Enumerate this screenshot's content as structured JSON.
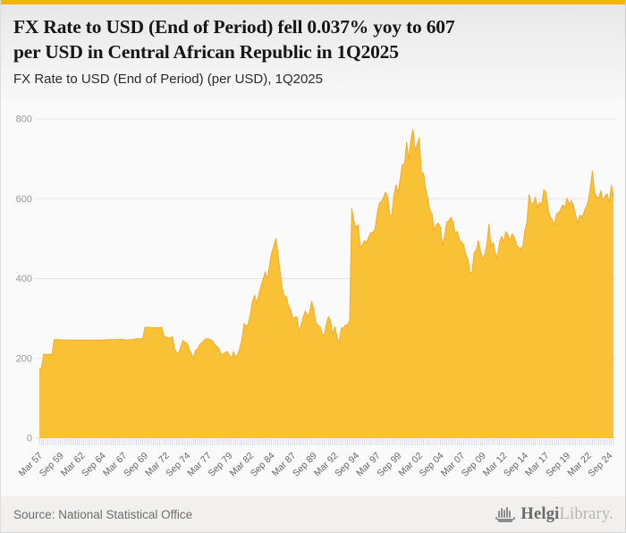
{
  "header": {
    "title": "FX Rate to USD (End of Period) fell 0.037% yoy to 607 per USD in Central African Republic in 1Q2025",
    "title_lines": [
      "FX Rate to USD (End of Period) fell 0.037% yoy to 607",
      "per USD in Central African Republic in 1Q2025"
    ],
    "subtitle": "FX Rate to USD (End of Period) (per USD), 1Q2025",
    "accent_color": "#F2B600"
  },
  "footer": {
    "source": "Source: National Statistical Office",
    "logo_primary": "Helgi",
    "logo_secondary": "Library."
  },
  "chart_data": {
    "type": "area",
    "title": "FX Rate to USD (End of Period) fell 0.037% yoy to 607 per USD in Central African Republic in 1Q2025",
    "subtitle": "FX Rate to USD (End of Period) (per USD), 1Q2025",
    "series_name": "FX Rate to USD (End of Period), per USD",
    "country": "Central African Republic",
    "frequency": "quarterly",
    "x_start": "Mar 1957",
    "x_end": "Mar 2025",
    "last_value": 607,
    "yoy_change_pct": -0.037,
    "ylim": [
      0,
      800
    ],
    "yticks": [
      0,
      200,
      400,
      600,
      800
    ],
    "grid": true,
    "legend": false,
    "x_tick_every": 10,
    "x_tick_labels": [
      "Mar 57",
      "Sep 59",
      "Mar 62",
      "Sep 64",
      "Mar 67",
      "Sep 69",
      "Mar 72",
      "Sep 74",
      "Mar 77",
      "Sep 79",
      "Mar 82",
      "Sep 84",
      "Mar 87",
      "Sep 89",
      "Mar 92",
      "Sep 94",
      "Mar 97",
      "Sep 99",
      "Mar 02",
      "Sep 04",
      "Mar 07",
      "Sep 09",
      "Mar 12",
      "Sep 14",
      "Mar 17",
      "Sep 19",
      "Mar 22",
      "Sep 24"
    ],
    "values": [
      175,
      175,
      210,
      210,
      210,
      210,
      210,
      247,
      247,
      247,
      247,
      246,
      246,
      246,
      246,
      246,
      246,
      246,
      246,
      246,
      246,
      246,
      246,
      246,
      246,
      246,
      246,
      246,
      246,
      246,
      246,
      246,
      247,
      247,
      247,
      247,
      247,
      247,
      248,
      248,
      247,
      246,
      246,
      247,
      247,
      248,
      250,
      249,
      249,
      250,
      278,
      278,
      278,
      277,
      277,
      277,
      277,
      277,
      278,
      256,
      254,
      252,
      250,
      255,
      226,
      214,
      212,
      230,
      245,
      240,
      238,
      222,
      212,
      200,
      220,
      224,
      235,
      239,
      245,
      249,
      249,
      247,
      244,
      235,
      230,
      226,
      211,
      209,
      215,
      217,
      208,
      201,
      217,
      203,
      209,
      226,
      249,
      288,
      279,
      287,
      311,
      344,
      358,
      337,
      361,
      381,
      399,
      417,
      398,
      432,
      463,
      480,
      500,
      464,
      419,
      378,
      355,
      355,
      331,
      322,
      301,
      303,
      304,
      267,
      284,
      303,
      319,
      303,
      316,
      342,
      324,
      289,
      283,
      279,
      262,
      256,
      287,
      305,
      292,
      259,
      279,
      254,
      237,
      276,
      276,
      283,
      285,
      295,
      576,
      546,
      527,
      535,
      478,
      484,
      495,
      490,
      504,
      515,
      515,
      524,
      561,
      588,
      593,
      602,
      617,
      605,
      557,
      559,
      608,
      635,
      615,
      652,
      686,
      687,
      742,
      699,
      746,
      774,
      721,
      737,
      752,
      665,
      664,
      625,
      602,
      570,
      563,
      521,
      534,
      539,
      528,
      482,
      506,
      542,
      544,
      554,
      540,
      513,
      518,
      497,
      491,
      485,
      460,
      449,
      415,
      416,
      465,
      471,
      495,
      468,
      448,
      458,
      486,
      536,
      481,
      490,
      463,
      452,
      490,
      506,
      492,
      518,
      510,
      497,
      512,
      504,
      485,
      477,
      476,
      479,
      519,
      542,
      611,
      588,
      587,
      604,
      576,
      591,
      584,
      623,
      616,
      574,
      555,
      547,
      532,
      562,
      565,
      573,
      585,
      577,
      602,
      585,
      595,
      584,
      560,
      537,
      559,
      553,
      566,
      579,
      593,
      626,
      669,
      615,
      605,
      601,
      620,
      594,
      607,
      612,
      589,
      634,
      607
    ],
    "colors": {
      "area_fill": "#F9C135",
      "area_stroke": "#F3AB2D",
      "gridline": "#e4e4e4",
      "y_label": "#999999",
      "x_label": "#666666",
      "tick_mark": "#c7d2e8"
    }
  }
}
